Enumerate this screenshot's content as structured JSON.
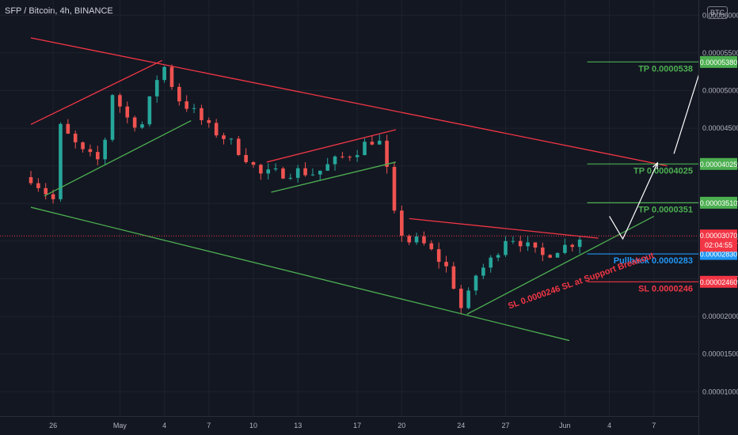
{
  "header": {
    "title": "SFP / Bitcoin, 4h, BINANCE",
    "currency_badge": "BTC"
  },
  "colors": {
    "bg": "#131722",
    "grid": "#1e222d",
    "up": "#26a69a",
    "down": "#ef5350",
    "trend_red": "#f23645",
    "trend_green": "#4caf50",
    "blue": "#2196f3",
    "axis_text": "#b2b5be"
  },
  "chart_data": {
    "type": "candlestick",
    "y_ticks": [
      "0.00006000",
      "0.00005500",
      "0.00005000",
      "0.00004500",
      "0.00004000",
      "0.00003500",
      "0.00003000",
      "0.00002500",
      "0.00002000",
      "0.00001500",
      "0.00001000"
    ],
    "y_tick_values": [
      6000,
      5500,
      5000,
      4500,
      4000,
      3500,
      3000,
      2500,
      2000,
      1500,
      1000
    ],
    "x_ticks": [
      {
        "label": "26",
        "x": 0.5
      },
      {
        "label": "May",
        "x": 2.0
      },
      {
        "label": "4",
        "x": 3.0
      },
      {
        "label": "7",
        "x": 4.0
      },
      {
        "label": "10",
        "x": 5.0
      },
      {
        "label": "13",
        "x": 6.0
      },
      {
        "label": "17",
        "x": 7.333
      },
      {
        "label": "20",
        "x": 8.333
      },
      {
        "label": "24",
        "x": 9.667
      },
      {
        "label": "27",
        "x": 10.667
      },
      {
        "label": "Jun",
        "x": 12.0
      },
      {
        "label": "4",
        "x": 13.0
      },
      {
        "label": "7",
        "x": 14.0
      }
    ],
    "x_range": [
      0,
      16
    ],
    "y_range": [
      800,
      6200
    ],
    "price_anchors": [
      [
        0.0,
        3850
      ],
      [
        0.5,
        3550
      ],
      [
        0.6,
        4550
      ],
      [
        1.2,
        4150
      ],
      [
        1.6,
        4050
      ],
      [
        1.8,
        5000
      ],
      [
        2.2,
        4600
      ],
      [
        2.5,
        4550
      ],
      [
        2.95,
        5380
      ],
      [
        3.3,
        4900
      ],
      [
        3.6,
        4750
      ],
      [
        4.0,
        4500
      ],
      [
        4.3,
        4400
      ],
      [
        4.6,
        4250
      ],
      [
        4.95,
        4050
      ],
      [
        5.1,
        3880
      ],
      [
        5.5,
        3900
      ],
      [
        6.0,
        3930
      ],
      [
        6.4,
        3900
      ],
      [
        6.8,
        4050
      ],
      [
        7.3,
        4200
      ],
      [
        7.65,
        4350
      ],
      [
        7.85,
        4300
      ],
      [
        8.05,
        3800
      ],
      [
        8.2,
        3200
      ],
      [
        8.5,
        3000
      ],
      [
        8.75,
        3000
      ],
      [
        9.1,
        2800
      ],
      [
        9.4,
        2600
      ],
      [
        9.7,
        2050
      ],
      [
        10.0,
        2550
      ],
      [
        10.35,
        2750
      ],
      [
        10.7,
        3080
      ],
      [
        11.0,
        3000
      ],
      [
        11.3,
        2850
      ],
      [
        11.5,
        2800
      ],
      [
        11.8,
        2900
      ],
      [
        12.1,
        2950
      ],
      [
        12.35,
        3070
      ]
    ],
    "last_price": "0.00003070",
    "countdown": "02:04:55",
    "levels": [
      {
        "label": "TP 0.0000538",
        "price": 5380,
        "axis_label": "0.00005380",
        "color": "#4caf50"
      },
      {
        "label": "TP 0.00004025",
        "price": 4025,
        "axis_label": "0.00004025",
        "color": "#4caf50"
      },
      {
        "label": "TP 0.0000351",
        "price": 3510,
        "axis_label": "0.00003510",
        "color": "#4caf50"
      },
      {
        "label": "Pullback 0.0000283",
        "price": 2830,
        "axis_label": "0.00002830",
        "color": "#2196f3"
      },
      {
        "label": "SL 0.0000246",
        "price": 2460,
        "axis_label": "0.00002460",
        "color": "#f23645"
      }
    ],
    "trendlines": [
      {
        "color": "#f23645",
        "points": [
          [
            0.0,
            5700
          ],
          [
            14.3,
            4000
          ]
        ]
      },
      {
        "color": "#4caf50",
        "points": [
          [
            0.0,
            3450
          ],
          [
            12.1,
            1680
          ]
        ]
      },
      {
        "color": "#f23645",
        "points": [
          [
            0.0,
            4550
          ],
          [
            2.95,
            5400
          ]
        ]
      },
      {
        "color": "#4caf50",
        "points": [
          [
            0.3,
            3600
          ],
          [
            3.6,
            4600
          ]
        ]
      },
      {
        "color": "#f23645",
        "points": [
          [
            5.3,
            4050
          ],
          [
            8.2,
            4480
          ]
        ]
      },
      {
        "color": "#4caf50",
        "points": [
          [
            5.4,
            3650
          ],
          [
            8.2,
            4050
          ]
        ]
      },
      {
        "color": "#f23645",
        "points": [
          [
            8.5,
            3300
          ],
          [
            12.75,
            3040
          ]
        ]
      },
      {
        "color": "#4caf50",
        "points": [
          [
            9.8,
            2030
          ],
          [
            14.0,
            3330
          ]
        ]
      }
    ],
    "projection_path": [
      [
        13.0,
        3330
      ],
      [
        13.3,
        3030
      ],
      [
        13.45,
        3220
      ],
      [
        14.08,
        4040
      ]
    ],
    "projection_path_2": [
      [
        14.45,
        4160
      ],
      [
        15.1,
        5380
      ]
    ],
    "annotation": {
      "text": "SL 0.0000246 SL at Support Breakout",
      "color": "#f23645"
    }
  }
}
